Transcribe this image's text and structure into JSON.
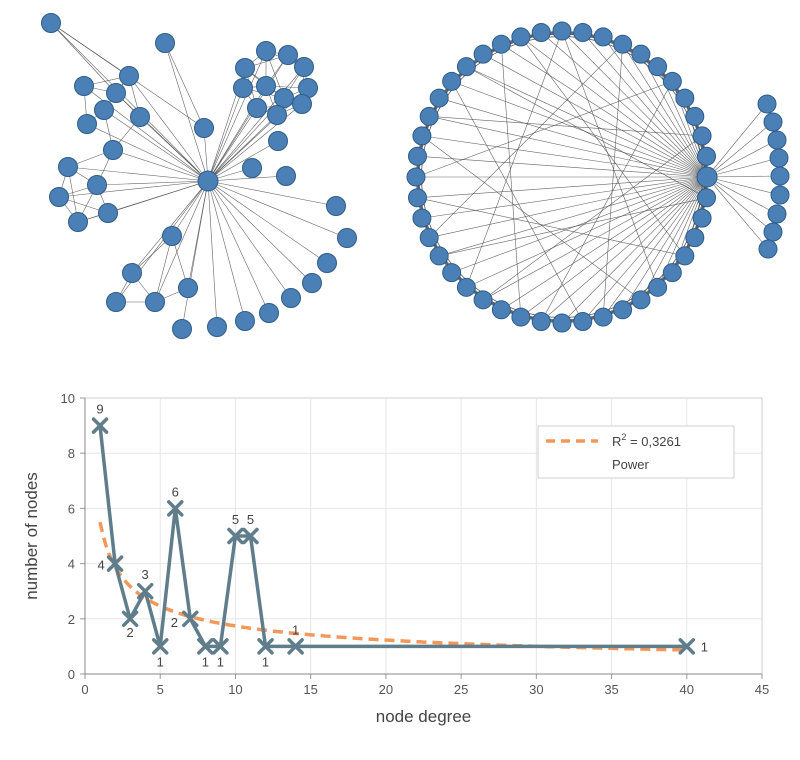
{
  "colors": {
    "series_line": "#607d8b",
    "fit_line": "#f4975a",
    "node_fill": "#4a80b5",
    "grid": "#e6e6e6"
  },
  "chart_data": [
    {
      "type": "network",
      "layout": "star-with-clusters",
      "hub_count": 1
    },
    {
      "type": "network",
      "layout": "circular-with-fan",
      "hub_count": 1
    },
    {
      "type": "line",
      "xlabel": "node degree",
      "ylabel": "number of nodes",
      "xlim": [
        0,
        45
      ],
      "ylim": [
        0,
        10
      ],
      "xticks": [
        0,
        5,
        10,
        15,
        20,
        25,
        30,
        35,
        40,
        45
      ],
      "yticks": [
        0,
        2,
        4,
        6,
        8,
        10
      ],
      "grid": true,
      "legend_position": "top-right",
      "series": [
        {
          "marker": "x",
          "x": [
            1,
            2,
            3,
            4,
            5,
            6,
            7,
            8,
            9,
            10,
            11,
            12,
            14,
            40
          ],
          "y": [
            9,
            4,
            2,
            3,
            1,
            6,
            2,
            1,
            1,
            5,
            5,
            1,
            1,
            1
          ],
          "labels": [
            "9",
            "4",
            "2",
            "3",
            "1",
            "6",
            "2",
            "1",
            "1",
            "5",
            "5",
            "1",
            "1",
            "1"
          ]
        }
      ],
      "trendline": {
        "type": "power",
        "coef": 5.5,
        "exponent": -0.5,
        "x_start": 1,
        "x_end": 40,
        "r2_label": "R",
        "r2_sup": "2",
        "r2_value": " = 0,3261",
        "legend_label": "Power"
      }
    }
  ]
}
